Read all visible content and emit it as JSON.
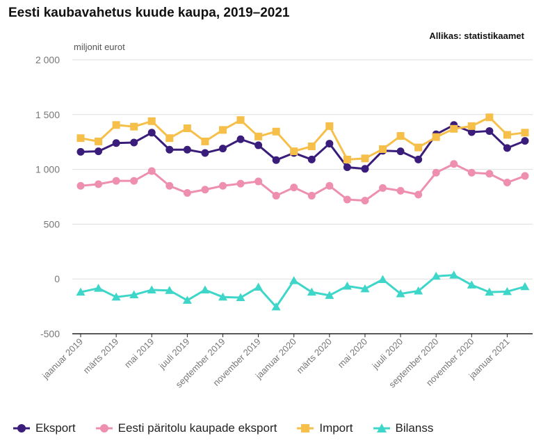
{
  "title": "Eesti kaubavahetus kuude kaupa, 2019–2021",
  "source": "Allikas: statistikaamet",
  "unit": "miljonit eurot",
  "chart_data": {
    "type": "line",
    "title": "Eesti kaubavahetus kuude kaupa, 2019–2021",
    "ylabel": "miljonit eurot",
    "xlabel": "",
    "ylim": [
      -500,
      2000
    ],
    "yticks": [
      -500,
      0,
      500,
      1000,
      1500,
      2000
    ],
    "ytick_labels": [
      "-500",
      "0",
      "500",
      "1 000",
      "1 500",
      "2 000"
    ],
    "grid": true,
    "legend_position": "bottom",
    "x": [
      "2019-01",
      "2019-02",
      "2019-03",
      "2019-04",
      "2019-05",
      "2019-06",
      "2019-07",
      "2019-08",
      "2019-09",
      "2019-10",
      "2019-11",
      "2019-12",
      "2020-01",
      "2020-02",
      "2020-03",
      "2020-04",
      "2020-05",
      "2020-06",
      "2020-07",
      "2020-08",
      "2020-09",
      "2020-10",
      "2020-11",
      "2020-12",
      "2021-01",
      "2021-02"
    ],
    "x_tick_labels": [
      {
        "index": 0,
        "label": "jaanuar 2019"
      },
      {
        "index": 2,
        "label": "märts 2019"
      },
      {
        "index": 4,
        "label": "mai 2019"
      },
      {
        "index": 6,
        "label": "juuli 2019"
      },
      {
        "index": 8,
        "label": "september 2019"
      },
      {
        "index": 10,
        "label": "november 2019"
      },
      {
        "index": 12,
        "label": "jaanuar 2020"
      },
      {
        "index": 14,
        "label": "märts 2020"
      },
      {
        "index": 16,
        "label": "mai 2020"
      },
      {
        "index": 18,
        "label": "juuli 2020"
      },
      {
        "index": 20,
        "label": "september 2020"
      },
      {
        "index": 22,
        "label": "november 2020"
      },
      {
        "index": 24,
        "label": "jaanuar 2021"
      }
    ],
    "series": [
      {
        "name": "Eksport",
        "color": "#3a1c7a",
        "marker": "circle",
        "values": [
          1160,
          1165,
          1240,
          1245,
          1335,
          1180,
          1180,
          1150,
          1190,
          1275,
          1220,
          1085,
          1150,
          1090,
          1235,
          1020,
          1005,
          1170,
          1165,
          1090,
          1320,
          1405,
          1340,
          1350,
          1195,
          1260
        ]
      },
      {
        "name": "Eesti päritolu kaupade eksport",
        "color": "#ee8fb0",
        "marker": "circle",
        "values": [
          850,
          865,
          895,
          895,
          985,
          850,
          785,
          815,
          850,
          870,
          890,
          760,
          835,
          760,
          850,
          725,
          715,
          830,
          805,
          770,
          970,
          1050,
          970,
          960,
          880,
          940
        ]
      },
      {
        "name": "Import",
        "color": "#f6bf4a",
        "marker": "square",
        "values": [
          1285,
          1255,
          1405,
          1390,
          1440,
          1285,
          1375,
          1255,
          1360,
          1450,
          1300,
          1345,
          1165,
          1210,
          1395,
          1090,
          1100,
          1185,
          1305,
          1200,
          1295,
          1370,
          1395,
          1475,
          1315,
          1335
        ]
      },
      {
        "name": "Bilanss",
        "color": "#3dd6c8",
        "marker": "triangle",
        "values": [
          -120,
          -85,
          -165,
          -145,
          -100,
          -105,
          -195,
          -100,
          -165,
          -170,
          -75,
          -255,
          -15,
          -120,
          -150,
          -65,
          -90,
          -5,
          -135,
          -110,
          25,
          35,
          -55,
          -120,
          -115,
          -70
        ]
      }
    ]
  }
}
